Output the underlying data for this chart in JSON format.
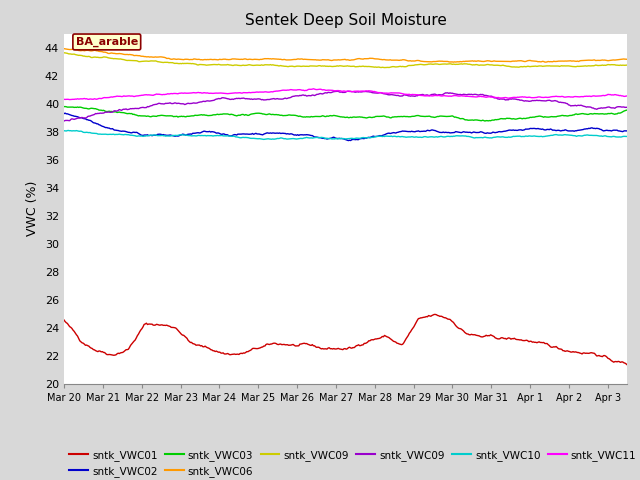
{
  "title": "Sentek Deep Soil Moisture",
  "ylabel": "VWC (%)",
  "annotation": "BA_arable",
  "ylim": [
    20,
    45
  ],
  "yticks": [
    20,
    22,
    24,
    26,
    28,
    30,
    32,
    34,
    36,
    38,
    40,
    42,
    44
  ],
  "date_range_days": 14.5,
  "xtick_labels": [
    "Mar 20",
    "Mar 21",
    "Mar 22",
    "Mar 23",
    "Mar 24",
    "Mar 25",
    "Mar 26",
    "Mar 27",
    "Mar 28",
    "Mar 29",
    "Mar 30",
    "Mar 31",
    "Apr 1",
    "Apr 2",
    "Apr 3"
  ],
  "figure_bg_color": "#d8d8d8",
  "axes_bg_color": "#dcdcdc",
  "plot_bg_color": "#ffffff",
  "grid_color": "#ffffff",
  "series": [
    {
      "label": "sntk_VWC01",
      "color": "#cc0000"
    },
    {
      "label": "sntk_VWC02",
      "color": "#0000cc"
    },
    {
      "label": "sntk_VWC03",
      "color": "#00cc00"
    },
    {
      "label": "sntk_VWC06",
      "color": "#ff9900"
    },
    {
      "label": "sntk_VWC09",
      "color": "#cccc00"
    },
    {
      "label": "sntk_VWC09",
      "color": "#9900cc"
    },
    {
      "label": "sntk_VWC10",
      "color": "#00cccc"
    },
    {
      "label": "sntk_VWC11",
      "color": "#ff00ff"
    }
  ],
  "legend_rows": [
    [
      "sntk_VWC01",
      "sntk_VWC02",
      "sntk_VWC03",
      "sntk_VWC06",
      "sntk_VWC09",
      "sntk_VWC09"
    ],
    [
      "sntk_VWC10",
      "sntk_VWC11"
    ]
  ]
}
